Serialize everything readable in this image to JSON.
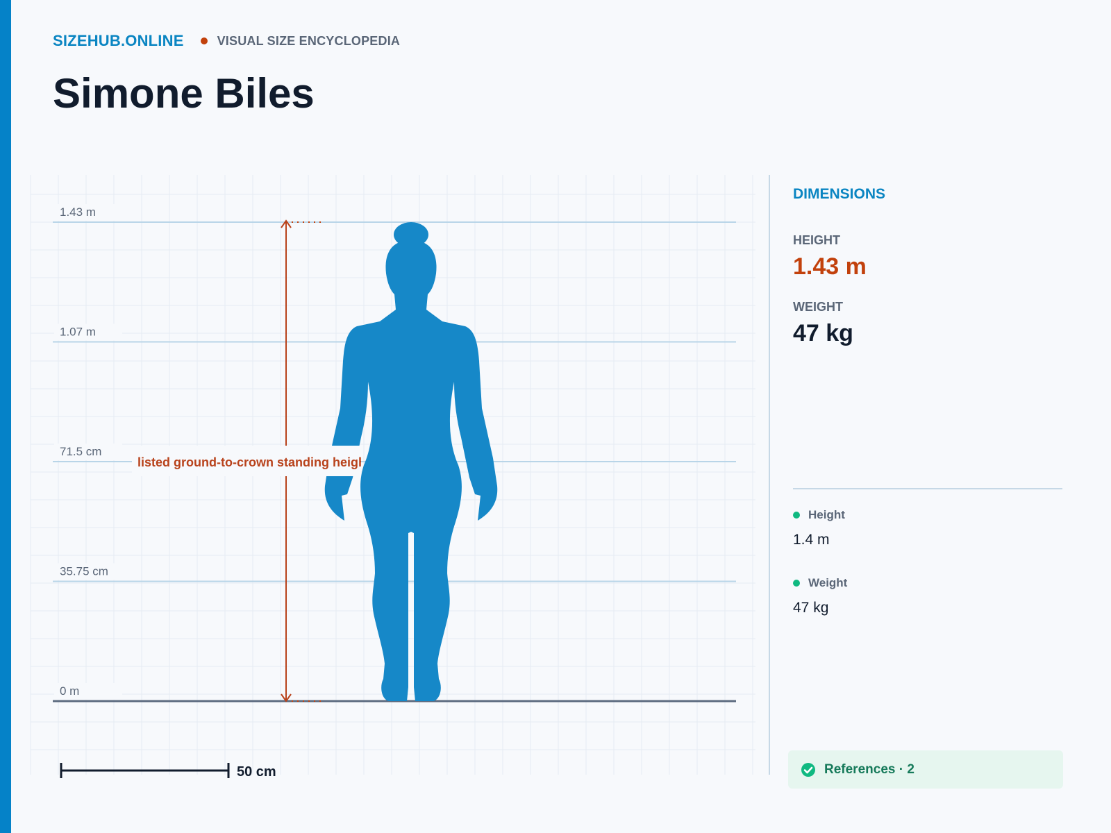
{
  "brand": {
    "site": "SIZEHUB.ONLINE",
    "tagline": "VISUAL SIZE ENCYCLOPEDIA",
    "colors": {
      "accent": "#0582c8",
      "highlight": "#c2410c",
      "positive": "#10b981"
    }
  },
  "title": "Simone Biles",
  "diagram": {
    "unit_height_m": 1.43,
    "levels": [
      "1.43 m",
      "1.07 m",
      "71.5 cm",
      "35.75 cm",
      "0 m"
    ],
    "annotation": "listed ground-to-crown standing height",
    "scale_bar": {
      "label": "50 cm",
      "length_m": 0.5
    },
    "figure_icon": "human-female-silhouette-icon"
  },
  "panel": {
    "title": "DIMENSIONS",
    "height_label": "HEIGHT",
    "height_value": "1.43 m",
    "weight_label": "WEIGHT",
    "weight_value": "47 kg"
  },
  "sources": [
    {
      "label": "Height",
      "value": "1.4 m"
    },
    {
      "label": "Weight",
      "value": "47 kg"
    }
  ],
  "references": {
    "label": "References · 2",
    "icon": "check-circle-icon"
  }
}
